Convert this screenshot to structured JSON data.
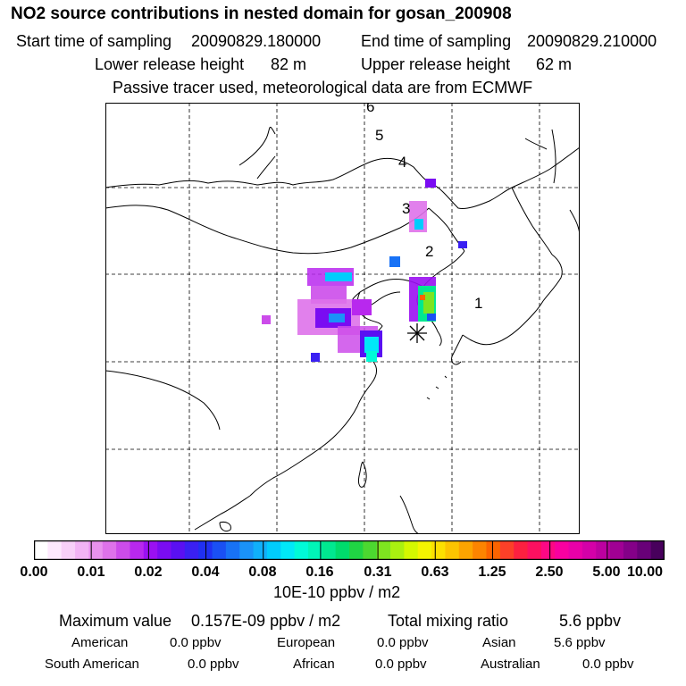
{
  "title": "NO2 source contributions in nested domain for gosan_200908",
  "header": {
    "start_label": "Start time of sampling",
    "start_value": "20090829.180000",
    "end_label": "End time of sampling",
    "end_value": "20090829.210000",
    "lower_label": "Lower release height",
    "lower_value": "82 m",
    "upper_label": "Upper release height",
    "upper_value": "62 m",
    "tracer_note": "Passive tracer used, meteorological data are from ECMWF"
  },
  "map": {
    "trajectory_labels": [
      "1",
      "2",
      "3",
      "4",
      "5",
      "6"
    ],
    "receptor_marker": "star-icon"
  },
  "colorbar": {
    "ticks": [
      "0.00",
      "0.01",
      "0.02",
      "0.04",
      "0.08",
      "0.16",
      "0.31",
      "0.63",
      "1.25",
      "2.50",
      "5.00",
      "10.00"
    ],
    "colors": [
      "#ffffff",
      "#fde8fd",
      "#f8d0f8",
      "#f2b4f4",
      "#e892ee",
      "#de72ea",
      "#cc4cea",
      "#b828ee",
      "#9a10f2",
      "#7a0cf2",
      "#5a10f2",
      "#3a20f2",
      "#2030f2",
      "#1a50f4",
      "#1872f6",
      "#1a92f8",
      "#10b0fa",
      "#00ccfc",
      "#00e8f8",
      "#00fad8",
      "#00f4b8",
      "#00e890",
      "#00dc6c",
      "#20d444",
      "#4cd830",
      "#7ee420",
      "#aaf010",
      "#d4f800",
      "#f4f400",
      "#fce000",
      "#fcc400",
      "#fca400",
      "#fc8400",
      "#fc6400",
      "#fc4028",
      "#fc2040",
      "#fc1060",
      "#fc0884",
      "#f800a0",
      "#e800a8",
      "#d400a8",
      "#bc00a0",
      "#a00094",
      "#840088",
      "#680078",
      "#48005c"
    ],
    "units": "10E-10 ppbv / m2"
  },
  "summary": {
    "max_label": "Maximum value",
    "max_value": "0.157E-09 ppbv / m2",
    "total_label": "Total mixing ratio",
    "total_value": "5.6 ppbv",
    "regions": [
      {
        "name": "American",
        "value": "0.0 ppbv"
      },
      {
        "name": "European",
        "value": "0.0 ppbv"
      },
      {
        "name": "Asian",
        "value": "5.6 ppbv"
      },
      {
        "name": "South American",
        "value": "0.0 ppbv"
      },
      {
        "name": "African",
        "value": "0.0 ppbv"
      },
      {
        "name": "Australian",
        "value": "0.0 ppbv"
      }
    ]
  }
}
